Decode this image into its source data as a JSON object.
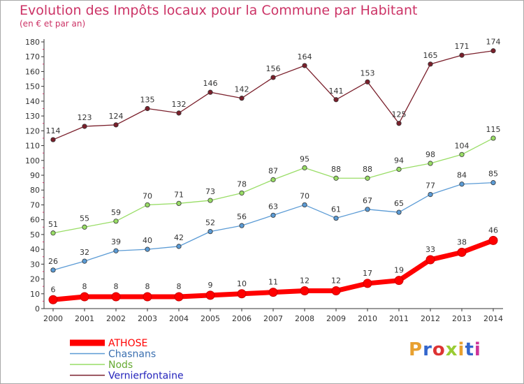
{
  "header": {
    "title": "Evolution des Impôts locaux pour la Commune par Habitant",
    "subtitle": "(en € et par an)"
  },
  "logo": {
    "text": "Proxiti",
    "colors": [
      "#e8a030",
      "#3366cc",
      "#dd3333",
      "#99cc33",
      "#e8a030",
      "#3366cc",
      "#cc3399"
    ]
  },
  "chart_data": {
    "type": "line",
    "title": "Evolution des Impôts locaux pour la Commune par Habitant",
    "subtitle": "(en € et par an)",
    "xlabel": "",
    "ylabel": "",
    "ylim": [
      0,
      180
    ],
    "ytick_step": 10,
    "grid": false,
    "legend_position": "bottom-left",
    "x": [
      "2000",
      "2001",
      "2002",
      "2003",
      "2004",
      "2005",
      "2006",
      "2007",
      "2008",
      "2009",
      "2010",
      "2011",
      "2012",
      "2013",
      "2014"
    ],
    "series": [
      {
        "name": "ATHOSE",
        "color": "#ff0000",
        "labelColor": "#ff0000",
        "emphasis": true,
        "values": [
          6,
          8,
          8,
          8,
          8,
          9,
          10,
          11,
          12,
          12,
          17,
          19,
          33,
          38,
          46
        ]
      },
      {
        "name": "Chasnans",
        "color": "#5b9bd5",
        "labelColor": "#3a6fb0",
        "emphasis": false,
        "values": [
          26,
          32,
          39,
          40,
          42,
          52,
          56,
          63,
          70,
          61,
          67,
          65,
          77,
          84,
          85
        ]
      },
      {
        "name": "Nods",
        "color": "#99dd66",
        "labelColor": "#66aa33",
        "emphasis": false,
        "values": [
          51,
          55,
          59,
          70,
          71,
          73,
          78,
          87,
          95,
          88,
          88,
          94,
          98,
          104,
          115
        ]
      },
      {
        "name": "Vernierfontaine",
        "color": "#7a1f2b",
        "labelColor": "#2222bb",
        "emphasis": false,
        "values": [
          114,
          123,
          124,
          135,
          132,
          146,
          142,
          156,
          164,
          141,
          153,
          125,
          165,
          171,
          174
        ]
      }
    ]
  }
}
